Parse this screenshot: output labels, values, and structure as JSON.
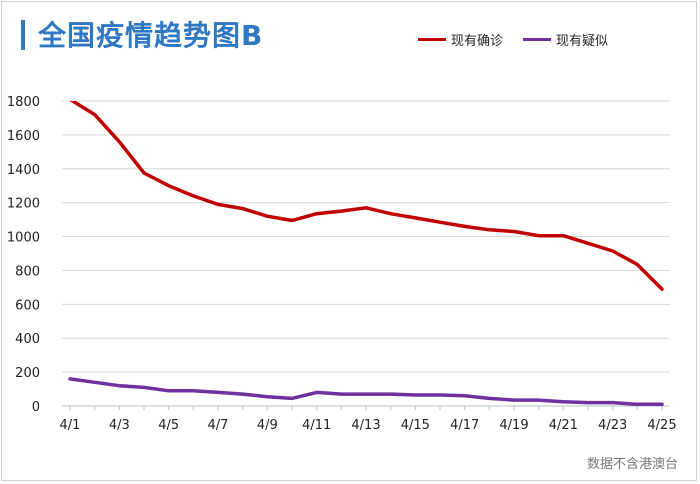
{
  "chart_data": {
    "type": "line",
    "title": "全国疫情趋势图B",
    "x": [
      "4/1",
      "4/2",
      "4/3",
      "4/4",
      "4/5",
      "4/6",
      "4/7",
      "4/8",
      "4/9",
      "4/10",
      "4/11",
      "4/12",
      "4/13",
      "4/14",
      "4/15",
      "4/16",
      "4/17",
      "4/18",
      "4/19",
      "4/20",
      "4/21",
      "4/22",
      "4/23",
      "4/24",
      "4/25"
    ],
    "x_tick_labels": [
      "4/1",
      "4/3",
      "4/5",
      "4/7",
      "4/9",
      "4/11",
      "4/13",
      "4/15",
      "4/17",
      "4/19",
      "4/21",
      "4/23",
      "4/25"
    ],
    "y_ticks": [
      0,
      200,
      400,
      600,
      800,
      1000,
      1200,
      1400,
      1600,
      1800
    ],
    "ylim": [
      0,
      1800
    ],
    "series": [
      {
        "name": "现有确诊",
        "color": "#c00000",
        "values": [
          1810,
          1720,
          1560,
          1375,
          1300,
          1240,
          1190,
          1165,
          1120,
          1095,
          1135,
          1150,
          1170,
          1135,
          1110,
          1085,
          1060,
          1040,
          1030,
          1005,
          1005,
          960,
          915,
          835,
          690
        ]
      },
      {
        "name": "现有疑似",
        "color": "#7030a0",
        "values": [
          160,
          140,
          120,
          110,
          90,
          90,
          80,
          70,
          55,
          45,
          80,
          70,
          70,
          70,
          65,
          65,
          60,
          45,
          35,
          35,
          25,
          20,
          20,
          10,
          10
        ]
      }
    ],
    "grid": true,
    "legend_position": "top-right"
  },
  "footnote": "数据不含港澳台"
}
